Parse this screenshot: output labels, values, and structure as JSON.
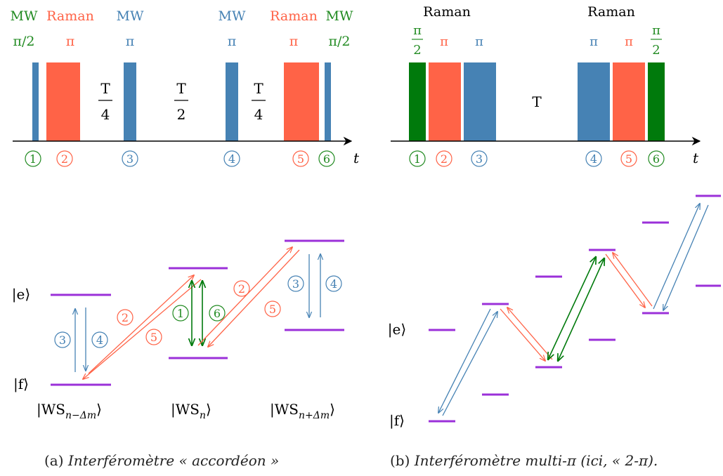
{
  "colors": {
    "mw_blue": "#4682b4",
    "raman_red": "#ff6347",
    "green": "#228b22",
    "green_dark": "#007a0c",
    "level_purple": "#9b30d9",
    "axis": "#000000"
  },
  "panel_a": {
    "labels": {
      "mw_left": "MW",
      "pi_half_left": "π/2",
      "raman_1": "Raman",
      "pi_r1": "π",
      "mw_3": "MW",
      "pi_3": "π",
      "mw_4": "MW",
      "pi_4": "π",
      "raman_5": "Raman",
      "pi_5": "π",
      "mw_6": "MW",
      "pi_half_6": "π/2"
    },
    "time_labels": [
      {
        "num": "T",
        "den": "4"
      },
      {
        "num": "T",
        "den": "2"
      },
      {
        "num": "T",
        "den": "4"
      }
    ],
    "time_axis_label": "t",
    "pulse_numbers": [
      "1",
      "2",
      "3",
      "4",
      "5",
      "6"
    ],
    "state_labels": {
      "e": "|e⟩",
      "f": "|f⟩",
      "ws_left": "|WS",
      "ws_left_sub": "n−Δm",
      "ws_mid": "|WS",
      "ws_mid_sub": "n",
      "ws_right": "|WS",
      "ws_right_sub": "n+Δm",
      "ket_close": "⟩"
    },
    "caption_num": "(a)",
    "caption_text": "Interféromètre « accordéon »"
  },
  "panel_b": {
    "labels": {
      "raman_left": "Raman",
      "raman_right": "Raman",
      "pi_1_num": "π",
      "pi_1_den": "2",
      "pi_2": "π",
      "pi_3": "π",
      "pi_4": "π",
      "pi_5": "π",
      "pi_6_num": "π",
      "pi_6_den": "2",
      "T": "T"
    },
    "time_axis_label": "t",
    "pulse_numbers": [
      "1",
      "2",
      "3",
      "4",
      "5",
      "6"
    ],
    "state_labels": {
      "e": "|e⟩",
      "f": "|f⟩"
    },
    "caption_num": "(b)",
    "caption_text": "Interféromètre multi-π (ici, « 2-π)."
  }
}
